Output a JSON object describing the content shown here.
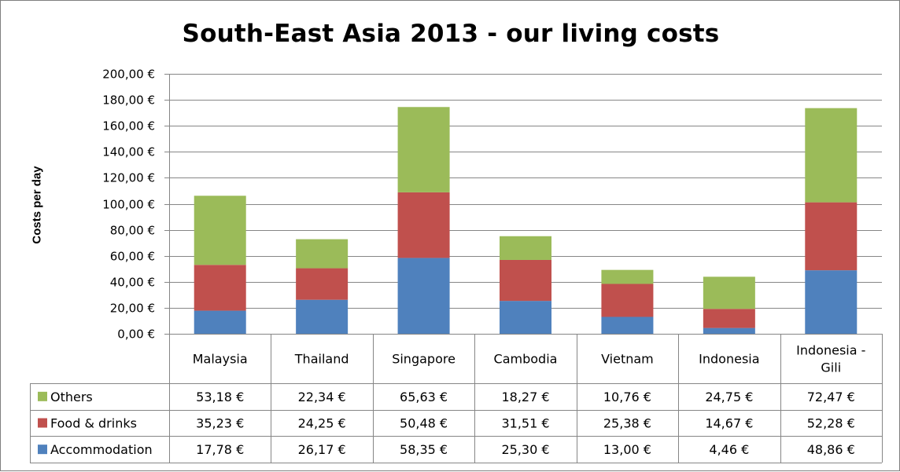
{
  "chart_data": {
    "type": "bar",
    "stacked": true,
    "title": "South-East Asia 2013 - our living costs",
    "ylabel": "Costs per day",
    "xlabel": "",
    "ylim": [
      0,
      200
    ],
    "y_ticks": [
      "0,00 €",
      "20,00 €",
      "40,00 €",
      "60,00 €",
      "80,00 €",
      "100,00 €",
      "120,00 €",
      "140,00 €",
      "160,00 €",
      "180,00 €",
      "200,00 €"
    ],
    "grid": true,
    "legend_placement": "data-table-left",
    "categories": [
      [
        "Malaysia"
      ],
      [
        "Thailand"
      ],
      [
        "Singapore"
      ],
      [
        "Cambodia"
      ],
      [
        "Vietnam"
      ],
      [
        "Indonesia"
      ],
      [
        "Indonesia -",
        "Gili"
      ]
    ],
    "series": [
      {
        "name": "Accommodation",
        "color": "#4f81bd",
        "values": [
          17.78,
          26.17,
          58.35,
          25.3,
          13.0,
          4.46,
          48.86
        ],
        "labels": [
          "17,78 €",
          "26,17 €",
          "58,35 €",
          "25,30 €",
          "13,00 €",
          "4,46 €",
          "48,86 €"
        ]
      },
      {
        "name": "Food & drinks",
        "color": "#c0504d",
        "values": [
          35.23,
          24.25,
          50.48,
          31.51,
          25.38,
          14.67,
          52.28
        ],
        "labels": [
          "35,23 €",
          "24,25 €",
          "50,48 €",
          "31,51 €",
          "25,38 €",
          "14,67 €",
          "52,28 €"
        ]
      },
      {
        "name": "Others",
        "color": "#9bbb59",
        "values": [
          53.18,
          22.34,
          65.63,
          18.27,
          10.76,
          24.75,
          72.47
        ],
        "labels": [
          "53,18 €",
          "22,34 €",
          "65,63 €",
          "18,27 €",
          "10,76 €",
          "24,75 €",
          "72,47 €"
        ]
      }
    ],
    "table_row_order": [
      "Others",
      "Food & drinks",
      "Accommodation"
    ]
  }
}
